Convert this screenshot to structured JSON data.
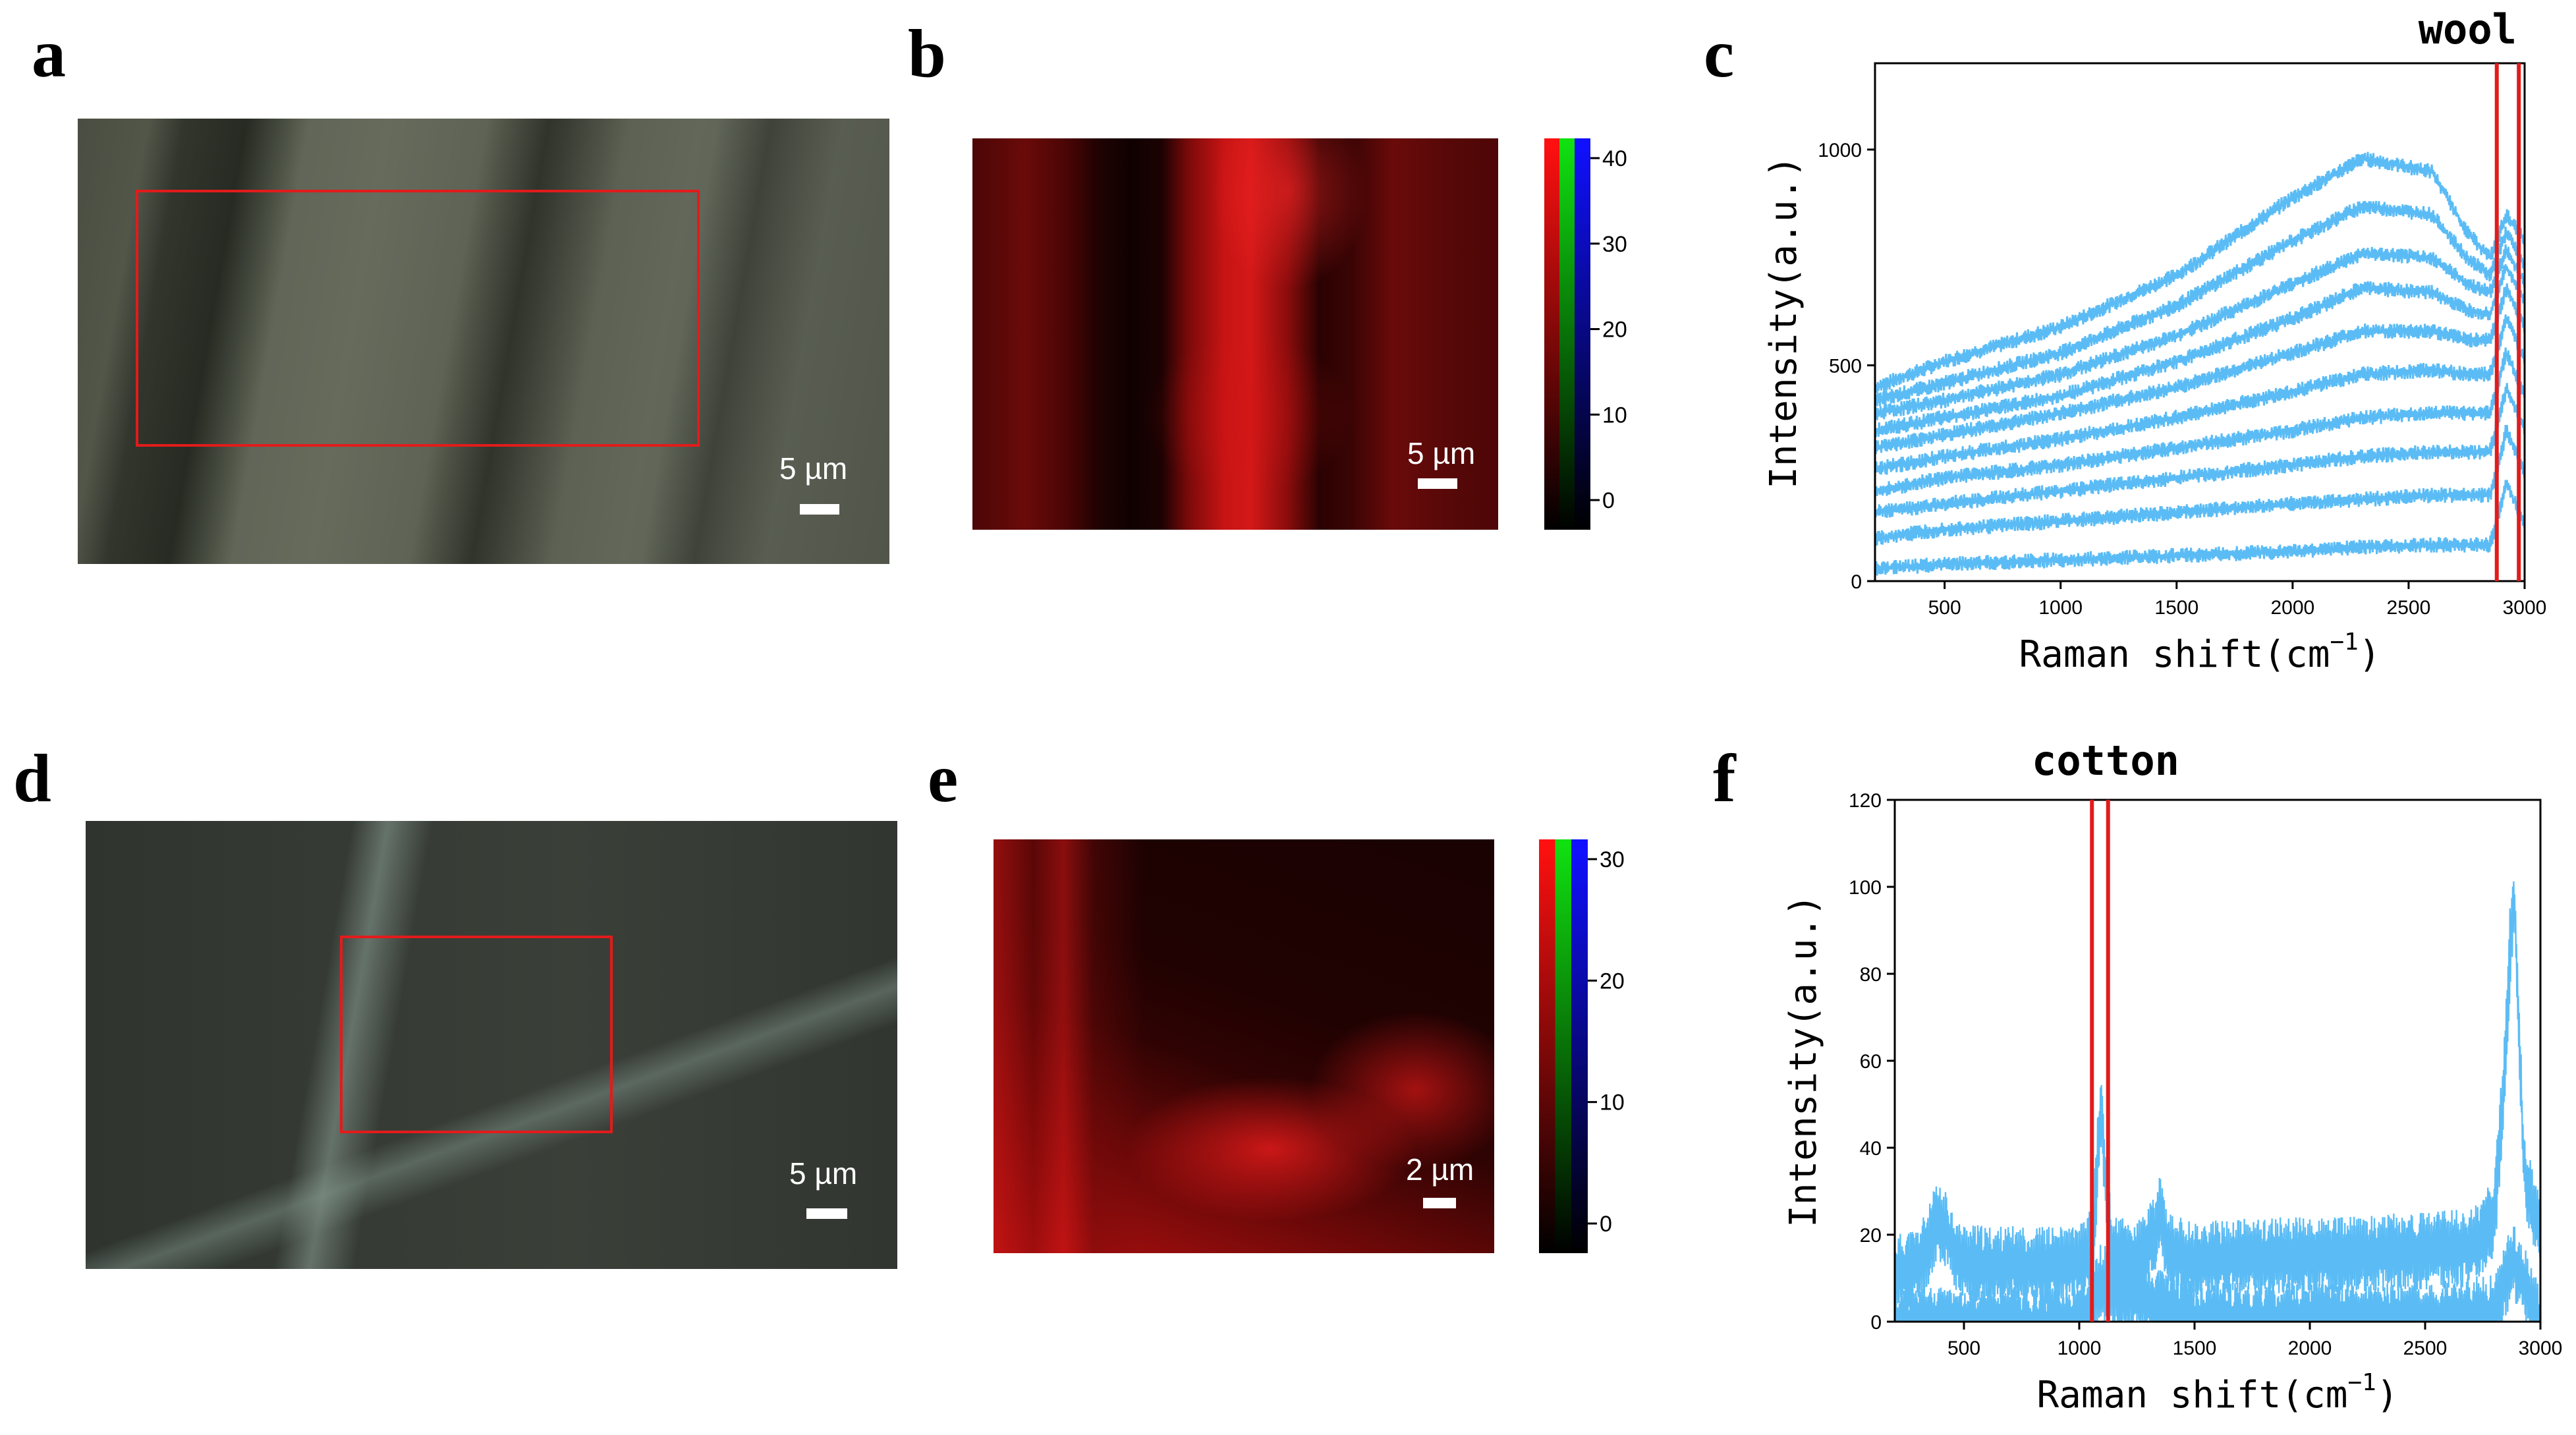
{
  "panels": {
    "a": {
      "letter": "a",
      "scale_label": "5 µm"
    },
    "b": {
      "letter": "b",
      "scale_label": "5 µm",
      "colorbar_ticks": [
        "40",
        "30",
        "20",
        "10",
        "0"
      ]
    },
    "c": {
      "letter": "c"
    },
    "d": {
      "letter": "d",
      "scale_label": "5 µm"
    },
    "e": {
      "letter": "e",
      "scale_label": "2 µm",
      "colorbar_ticks": [
        "30",
        "20",
        "10",
        "0"
      ]
    },
    "f": {
      "letter": "f"
    }
  },
  "colors": {
    "spectrum": "#5bbcf5",
    "marker": "#e31b1b",
    "roi": "#e31b1b"
  },
  "chart_data": [
    {
      "panel": "c",
      "type": "line",
      "title": "wool",
      "xlabel": "Raman shift",
      "xlabel_unit": "(cm",
      "xlabel_sup": "−1",
      "xlabel_close": ")",
      "ylabel": "Intensity(a.u.)",
      "xlim": [
        200,
        3000
      ],
      "ylim": [
        0,
        1200
      ],
      "x_ticks": [
        500,
        1000,
        1500,
        2000,
        2500,
        3000
      ],
      "y_ticks": [
        0,
        500,
        1000
      ],
      "marker_lines_x": [
        2880,
        2975
      ],
      "series": [
        {
          "peak": 1010,
          "x": [
            200,
            500,
            1000,
            1500,
            2000,
            2300,
            2600,
            2750,
            2850,
            2920,
            3000
          ],
          "values": [
            460,
            520,
            600,
            720,
            900,
            990,
            960,
            820,
            760,
            860,
            800
          ]
        },
        {
          "peak": 880,
          "x": [
            200,
            500,
            1000,
            1500,
            2000,
            2300,
            2600,
            2750,
            2850,
            2920,
            3000
          ],
          "values": [
            430,
            470,
            540,
            650,
            800,
            880,
            860,
            760,
            720,
            820,
            740
          ]
        },
        {
          "peak": 780,
          "x": [
            200,
            500,
            1000,
            1500,
            2000,
            2300,
            2600,
            2750,
            2850,
            2920,
            3000
          ],
          "values": [
            400,
            430,
            490,
            580,
            700,
            770,
            760,
            700,
            680,
            780,
            700
          ]
        },
        {
          "peak": 700,
          "x": [
            200,
            500,
            1000,
            1500,
            2000,
            2300,
            2600,
            2750,
            2850,
            2920,
            3000
          ],
          "values": [
            360,
            390,
            440,
            520,
            620,
            690,
            680,
            640,
            630,
            740,
            660
          ]
        },
        {
          "peak": 600,
          "x": [
            200,
            500,
            1000,
            1500,
            2000,
            2300,
            2600,
            2750,
            2850,
            2920,
            3000
          ],
          "values": [
            320,
            350,
            400,
            460,
            540,
            590,
            590,
            570,
            570,
            690,
            600
          ]
        },
        {
          "peak": 500,
          "x": [
            200,
            500,
            1000,
            1500,
            2000,
            2300,
            2600,
            2750,
            2850,
            2920,
            3000
          ],
          "values": [
            270,
            300,
            340,
            390,
            450,
            490,
            500,
            490,
            490,
            620,
            520
          ]
        },
        {
          "peak": 400,
          "x": [
            200,
            500,
            1000,
            1500,
            2000,
            2300,
            2600,
            2750,
            2850,
            2920,
            3000
          ],
          "values": [
            220,
            250,
            280,
            320,
            360,
            390,
            400,
            400,
            400,
            540,
            440
          ]
        },
        {
          "peak": 300,
          "x": [
            200,
            500,
            1000,
            1500,
            2000,
            2300,
            2600,
            2750,
            2850,
            2920,
            3000
          ],
          "values": [
            170,
            190,
            220,
            250,
            280,
            300,
            310,
            310,
            310,
            460,
            360
          ]
        },
        {
          "peak": 200,
          "x": [
            200,
            500,
            1000,
            1500,
            2000,
            2300,
            2600,
            2750,
            2850,
            2920,
            3000
          ],
          "values": [
            110,
            130,
            150,
            170,
            190,
            200,
            210,
            210,
            210,
            360,
            260
          ]
        },
        {
          "peak": 100,
          "x": [
            200,
            500,
            1000,
            1500,
            2000,
            2300,
            2600,
            2750,
            2850,
            2920,
            3000
          ],
          "values": [
            40,
            50,
            60,
            70,
            80,
            90,
            95,
            95,
            95,
            240,
            140
          ]
        }
      ]
    },
    {
      "panel": "f",
      "type": "line",
      "title": "cotton",
      "xlabel": "Raman shift",
      "xlabel_unit": "(cm",
      "xlabel_sup": "−1",
      "xlabel_close": ")",
      "ylabel": "Intensity(a.u.)",
      "xlim": [
        200,
        3000
      ],
      "ylim": [
        0,
        120
      ],
      "x_ticks": [
        500,
        1000,
        1500,
        2000,
        2500,
        3000
      ],
      "y_ticks": [
        0,
        20,
        40,
        60,
        80,
        100,
        120
      ],
      "marker_lines_x": [
        1055,
        1125
      ],
      "series": [
        {
          "x": [
            200,
            300,
            350,
            380,
            420,
            480,
            600,
            800,
            1000,
            1060,
            1080,
            1095,
            1110,
            1140,
            1250,
            1330,
            1350,
            1380,
            1500,
            1800,
            2100,
            2400,
            2700,
            2800,
            2840,
            2870,
            2885,
            2900,
            2930,
            3000
          ],
          "values": [
            17,
            19,
            24,
            29,
            27,
            20,
            19,
            19,
            19,
            24,
            45,
            55,
            40,
            22,
            20,
            26,
            32,
            22,
            20,
            21,
            21,
            22,
            23,
            30,
            60,
            95,
            104,
            80,
            40,
            25
          ]
        },
        {
          "x": [
            200,
            500,
            1000,
            1090,
            1500,
            2000,
            2500,
            2800,
            2880,
            3000
          ],
          "values": [
            5,
            5,
            5,
            15,
            6,
            6,
            6,
            8,
            20,
            6
          ]
        }
      ]
    }
  ]
}
